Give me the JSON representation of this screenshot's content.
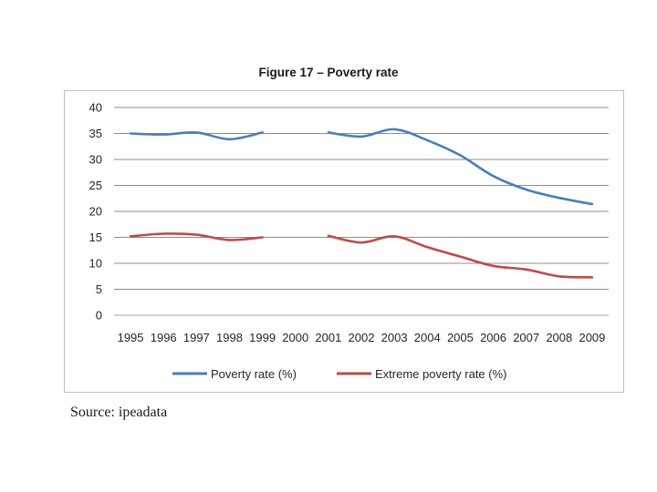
{
  "figure": {
    "title": "Figure 17 – Poverty rate",
    "source": "Source: ipeadata"
  },
  "chart_data": {
    "type": "line",
    "title": "Figure 17 – Poverty rate",
    "xlabel": "",
    "ylabel": "",
    "categories": [
      "1995",
      "1996",
      "1997",
      "1998",
      "1999",
      "2000",
      "2001",
      "2002",
      "2003",
      "2004",
      "2005",
      "2006",
      "2007",
      "2008",
      "2009"
    ],
    "yticks": [
      0,
      5,
      10,
      15,
      20,
      25,
      30,
      35,
      40
    ],
    "ylim": [
      0,
      40
    ],
    "grid": true,
    "legend_position": "bottom",
    "series": [
      {
        "name": "Poverty rate (%)",
        "color": "#4a7ebb",
        "values": [
          35.0,
          34.8,
          35.2,
          33.9,
          35.2,
          null,
          35.2,
          34.4,
          35.8,
          33.7,
          30.8,
          26.8,
          24.2,
          22.6,
          21.4
        ]
      },
      {
        "name": "Extreme poverty rate (%)",
        "color": "#be4b48",
        "values": [
          15.2,
          15.7,
          15.5,
          14.5,
          15.0,
          null,
          15.3,
          14.0,
          15.2,
          13.1,
          11.3,
          9.5,
          8.8,
          7.5,
          7.3
        ]
      }
    ]
  }
}
